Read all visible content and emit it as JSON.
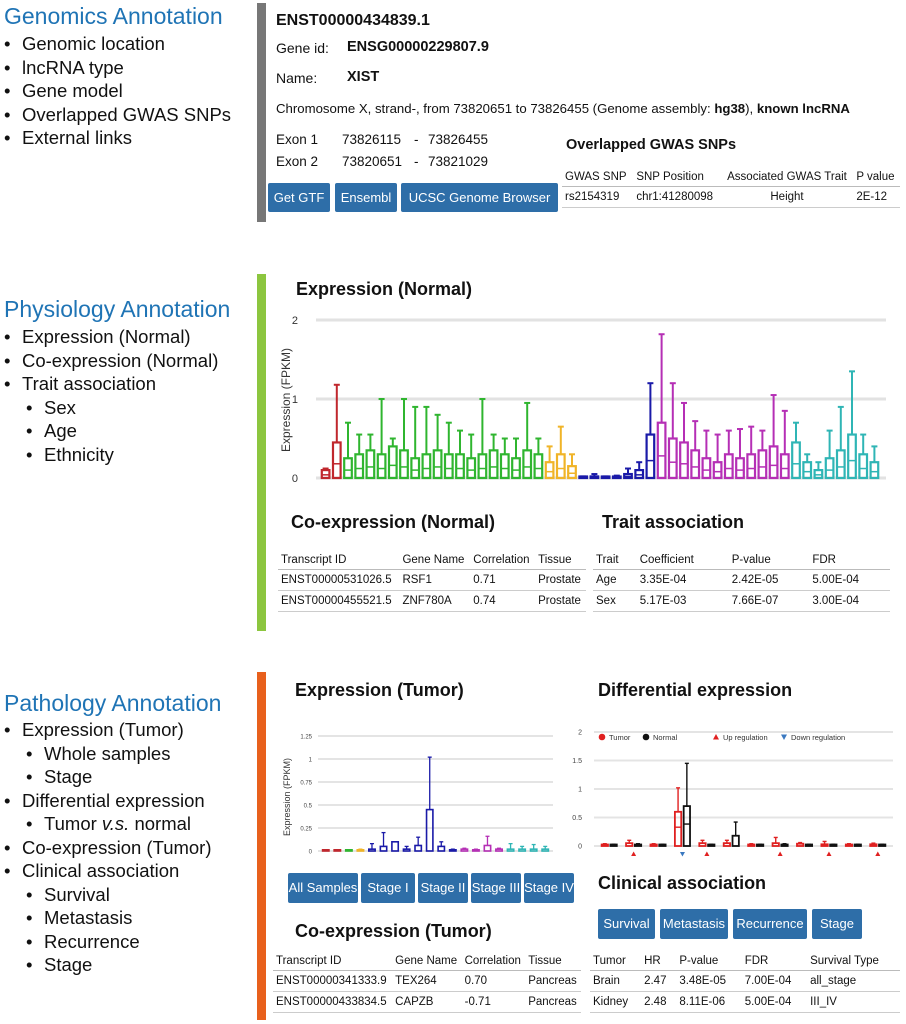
{
  "genomics": {
    "title": "Genomics Annotation",
    "items": [
      "Genomic location",
      "lncRNA type",
      "Gene model",
      "Overlapped GWAS SNPs",
      "External links"
    ],
    "transcript_id": "ENST00000434839.1",
    "gene_id_label": "Gene id:",
    "gene_id": "ENSG00000229807.9",
    "name_label": "Name:",
    "name": "XIST",
    "location_text": "Chromosome X, strand-, from 73820651 to 73826455 (Genome assembly: ",
    "assembly": "hg38",
    "location_close": "), ",
    "lnc_type": "known lncRNA",
    "exons": [
      {
        "label": "Exon 1",
        "start": "73826115",
        "sep": "-",
        "end": "73826455"
      },
      {
        "label": "Exon 2",
        "start": "73820651",
        "sep": "-",
        "end": "73821029"
      }
    ],
    "buttons": {
      "gtf": "Get GTF",
      "ensembl": "Ensembl",
      "ucsc": "UCSC Genome Browser"
    },
    "gwas": {
      "title": "Overlapped GWAS SNPs",
      "headers": [
        "GWAS SNP",
        "SNP Position",
        "Associated GWAS Trait",
        "P value"
      ],
      "rows": [
        [
          "rs2154319",
          "chr1:41280098",
          "Height",
          "2E-12"
        ]
      ]
    },
    "accent": "#777777"
  },
  "physiology": {
    "title": "Physiology Annotation",
    "items": [
      {
        "text": "Expression (Normal)",
        "level": 1
      },
      {
        "text": "Co-expression (Normal)",
        "level": 1
      },
      {
        "text": "Trait association",
        "level": 1
      },
      {
        "text": "Sex",
        "level": 2
      },
      {
        "text": "Age",
        "level": 2
      },
      {
        "text": "Ethnicity",
        "level": 2
      }
    ],
    "accent": "#8cc63f",
    "expression_title": "Expression (Normal)",
    "coexp_title": "Co-expression (Normal)",
    "coexp": {
      "headers": [
        "Transcript ID",
        "Gene Name",
        "Correlation",
        "Tissue"
      ],
      "rows": [
        [
          "ENST00000531026.5",
          "RSF1",
          "0.71",
          "Prostate"
        ],
        [
          "ENST00000455521.5",
          "ZNF780A",
          "0.74",
          "Prostate"
        ]
      ]
    },
    "trait_title": "Trait association",
    "trait": {
      "headers": [
        "Trait",
        "Coefficient",
        "P-value",
        "FDR"
      ],
      "rows": [
        [
          "Age",
          "3.35E-04",
          "2.42E-05",
          "5.00E-04"
        ],
        [
          "Sex",
          "5.17E-03",
          "7.66E-07",
          "3.00E-04"
        ]
      ]
    }
  },
  "pathology": {
    "title": "Pathology Annotation",
    "items": [
      {
        "text": "Expression (Tumor)",
        "level": 1
      },
      {
        "text": "Whole samples",
        "level": 2
      },
      {
        "text": "Stage",
        "level": 2
      },
      {
        "text": "Differential expression",
        "level": 1
      },
      {
        "text": "Tumor v.s. normal",
        "level": 2
      },
      {
        "text": "Co-expression (Tumor)",
        "level": 1
      },
      {
        "text": "Clinical association",
        "level": 1
      },
      {
        "text": "Survival",
        "level": 2
      },
      {
        "text": "Metastasis",
        "level": 2
      },
      {
        "text": "Recurrence",
        "level": 2
      },
      {
        "text": "Stage",
        "level": 2
      }
    ],
    "accent": "#e8601c",
    "expression_title": "Expression (Tumor)",
    "stage_buttons": [
      "All Samples",
      "Stage I",
      "Stage II",
      "Stage III",
      "Stage IV"
    ],
    "coexp_title": "Co-expression (Tumor)",
    "coexp": {
      "headers": [
        "Transcript ID",
        "Gene Name",
        "Correlation",
        "Tissue"
      ],
      "rows": [
        [
          "ENST00000341333.9",
          "TEX264",
          "0.70",
          "Pancreas"
        ],
        [
          "ENST00000433834.5",
          "CAPZB",
          "-0.71",
          "Pancreas"
        ]
      ]
    },
    "diff_title": "Differential expression",
    "clinical_title": "Clinical association",
    "clinical_buttons": [
      "Survival",
      "Metastasis",
      "Recurrence",
      "Stage"
    ],
    "clinical": {
      "headers": [
        "Tumor",
        "HR",
        "P-value",
        "FDR",
        "Survival Type"
      ],
      "rows": [
        [
          "Brain",
          "2.47",
          "3.48E-05",
          "7.00E-04",
          "all_stage"
        ],
        [
          "Kidney",
          "2.48",
          "8.11E-06",
          "5.00E-04",
          "III_IV"
        ]
      ]
    }
  },
  "chart_data": [
    {
      "type": "box",
      "title": "Expression (Normal)",
      "ylabel": "Expression (FPKM)",
      "ylim": [
        0,
        2
      ],
      "yticks": [
        "0",
        "1",
        "2"
      ],
      "grid": true,
      "colors": [
        "#c0272d",
        "#2fb52f",
        "#f0b428",
        "#1a1aa8",
        "#b52fb5",
        "#2fb5b5"
      ],
      "groups": [
        {
          "color_index": 0,
          "q3": [
            0.1,
            0.45
          ],
          "whisker": [
            0.12,
            1.18
          ]
        },
        {
          "color_index": 1,
          "q3": [
            0.25,
            0.3,
            0.35,
            0.3,
            0.4,
            0.35,
            0.25,
            0.3,
            0.35,
            0.3,
            0.3,
            0.25,
            0.3,
            0.35,
            0.3,
            0.25,
            0.35,
            0.3
          ],
          "whisker": [
            0.7,
            0.55,
            0.55,
            1.0,
            0.5,
            1.0,
            0.9,
            0.9,
            0.8,
            0.7,
            0.6,
            0.55,
            1.0,
            0.55,
            0.5,
            0.5,
            0.95,
            0.5
          ]
        },
        {
          "color_index": 2,
          "q3": [
            0.2,
            0.3,
            0.15
          ],
          "whisker": [
            0.4,
            0.65,
            0.3
          ]
        },
        {
          "color_index": 3,
          "q3": [
            0.0,
            0.02,
            0.0,
            0.0,
            0.05,
            0.1,
            0.55
          ],
          "whisker": [
            0.02,
            0.05,
            0.02,
            0.03,
            0.12,
            0.2,
            1.2
          ]
        },
        {
          "color_index": 4,
          "q3": [
            0.7,
            0.5,
            0.45,
            0.35,
            0.25,
            0.2,
            0.3,
            0.25,
            0.3,
            0.35,
            0.4,
            0.3
          ],
          "whisker": [
            1.82,
            1.2,
            0.95,
            0.72,
            0.6,
            0.55,
            0.6,
            0.62,
            0.65,
            0.6,
            1.05,
            0.85
          ]
        },
        {
          "color_index": 5,
          "q3": [
            0.45,
            0.2,
            0.1,
            0.25,
            0.35,
            0.55,
            0.3,
            0.2
          ],
          "whisker": [
            0.7,
            0.3,
            0.2,
            0.6,
            0.9,
            1.35,
            0.55,
            0.4
          ]
        }
      ]
    },
    {
      "type": "box",
      "title": "Expression (Tumor)",
      "ylabel": "Expression (FPKM)",
      "ylim": [
        0,
        1.25
      ],
      "yticks": [
        "0",
        "0.25",
        "0.5",
        "0.75",
        "1",
        "1.25"
      ],
      "grid": true,
      "colors": [
        "#c0272d",
        "#2fb52f",
        "#f0b428",
        "#1a1aa8",
        "#b52fb5",
        "#2fb5b5"
      ],
      "series_color_index": [
        0,
        0,
        1,
        2,
        3,
        3,
        3,
        3,
        3,
        3,
        3,
        3,
        4,
        4,
        4,
        4,
        5,
        5,
        5,
        5
      ],
      "q3": [
        0.0,
        0.0,
        0.0,
        0.0,
        0.02,
        0.05,
        0.1,
        0.02,
        0.06,
        0.45,
        0.05,
        0.0,
        0.02,
        0.0,
        0.06,
        0.02,
        0.02,
        0.02,
        0.02,
        0.02
      ],
      "whisker": [
        0.01,
        0.01,
        0.01,
        0.02,
        0.08,
        0.2,
        0.1,
        0.05,
        0.15,
        1.02,
        0.1,
        0.02,
        0.03,
        0.02,
        0.16,
        0.03,
        0.08,
        0.05,
        0.07,
        0.05
      ]
    },
    {
      "type": "box",
      "title": "Differential expression",
      "ylim": [
        0,
        2
      ],
      "yticks": [
        "0",
        "0.5",
        "1",
        "1.5",
        "2"
      ],
      "grid": true,
      "legend": [
        {
          "label": "Tumor",
          "color": "#e02020",
          "symbol": "circle"
        },
        {
          "label": "Normal",
          "color": "#111111",
          "symbol": "circle"
        },
        {
          "label": "Up regulation",
          "color": "#e02020",
          "symbol": "triangle-up"
        },
        {
          "label": "Down regulation",
          "color": "#3a78c0",
          "symbol": "triangle-down"
        }
      ],
      "pairs": [
        {
          "tumor": 0.02,
          "normal": 0.02,
          "tumor_w": 0.04,
          "normal_w": 0.03
        },
        {
          "tumor": 0.05,
          "normal": 0.02,
          "tumor_w": 0.1,
          "normal_w": 0.04,
          "up": true
        },
        {
          "tumor": 0.02,
          "normal": 0.02,
          "tumor_w": 0.04,
          "normal_w": 0.03
        },
        {
          "tumor": 0.6,
          "normal": 0.7,
          "tumor_w": 1.02,
          "normal_w": 1.45,
          "down": true
        },
        {
          "tumor": 0.05,
          "normal": 0.02,
          "tumor_w": 0.1,
          "normal_w": 0.03,
          "up": true
        },
        {
          "tumor": 0.05,
          "normal": 0.18,
          "tumor_w": 0.1,
          "normal_w": 0.42
        },
        {
          "tumor": 0.02,
          "normal": 0.02,
          "tumor_w": 0.04,
          "normal_w": 0.03
        },
        {
          "tumor": 0.05,
          "normal": 0.02,
          "tumor_w": 0.15,
          "normal_w": 0.04,
          "up": true
        },
        {
          "tumor": 0.04,
          "normal": 0.02,
          "tumor_w": 0.06,
          "normal_w": 0.03
        },
        {
          "tumor": 0.03,
          "normal": 0.02,
          "tumor_w": 0.08,
          "normal_w": 0.03,
          "up": true
        },
        {
          "tumor": 0.02,
          "normal": 0.02,
          "tumor_w": 0.04,
          "normal_w": 0.03
        },
        {
          "tumor": 0.03,
          "normal": 0.02,
          "tumor_w": 0.05,
          "normal_w": 0.03,
          "up": true
        }
      ]
    }
  ]
}
